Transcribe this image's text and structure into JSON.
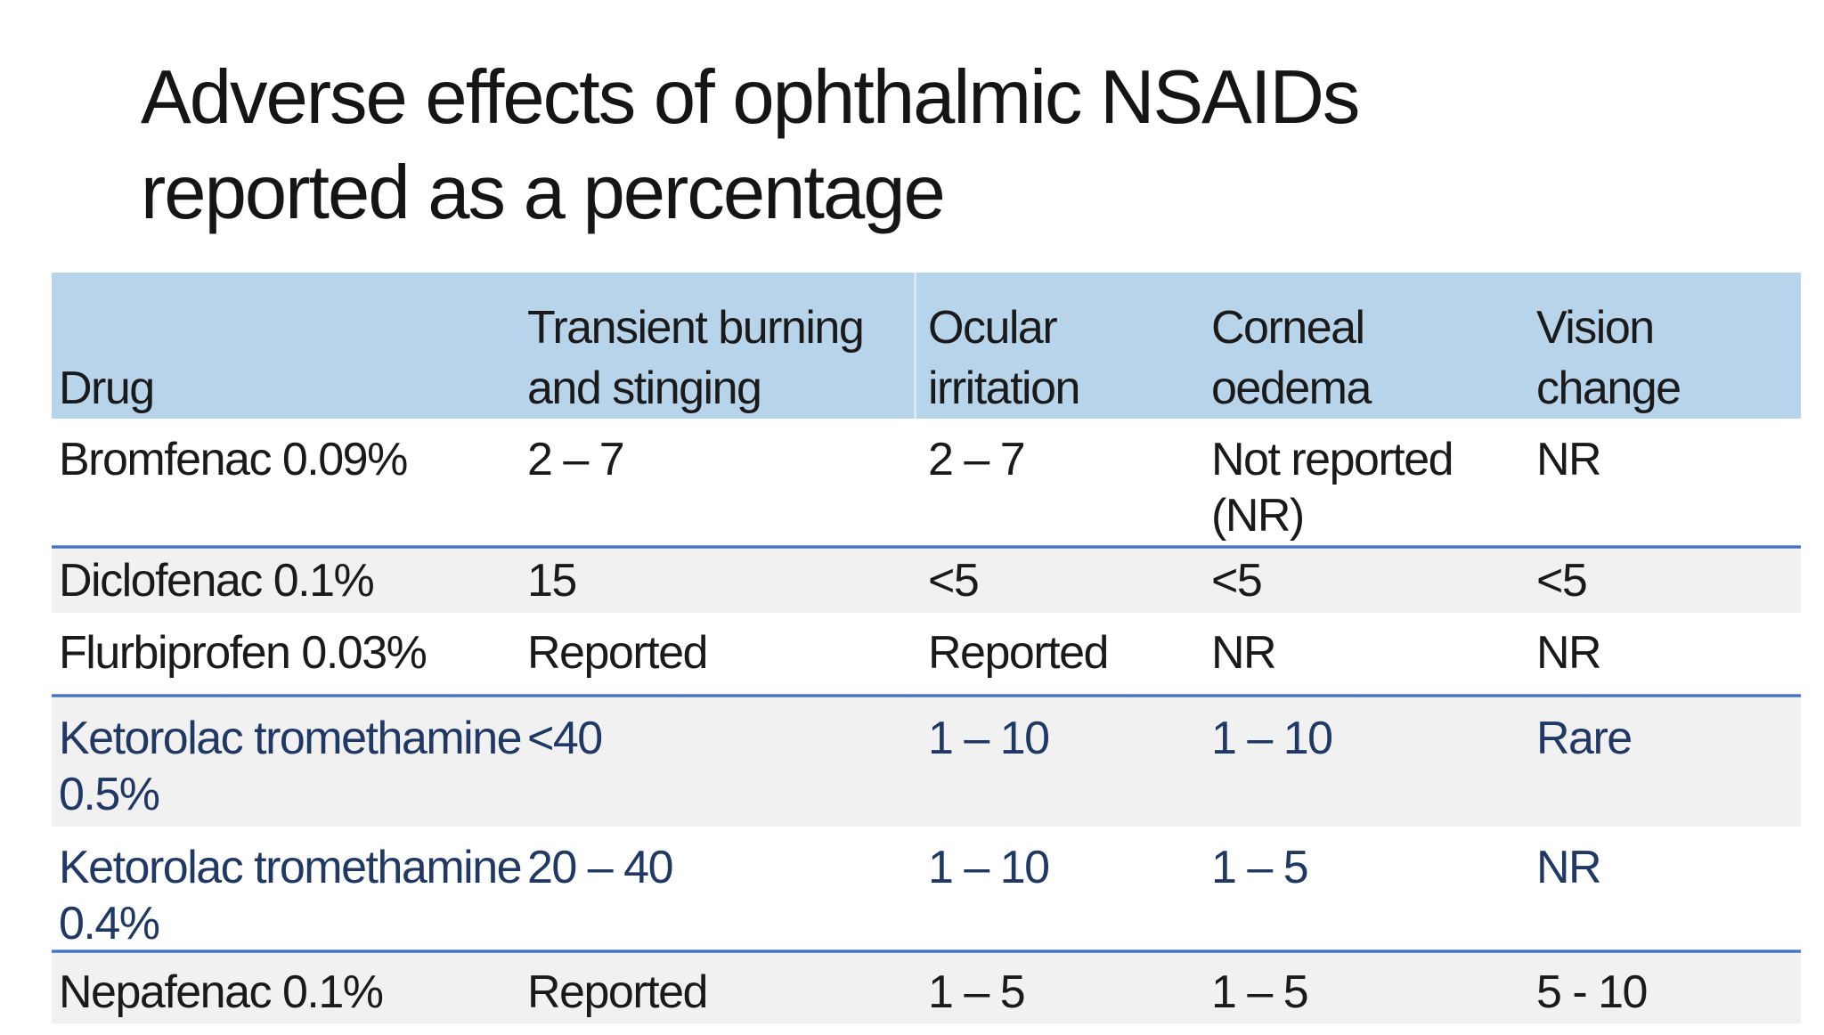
{
  "colors": {
    "header-bg": "#B8D4EB",
    "stripe-bg": "#F1F1F1",
    "divider-blue": "#4472C4",
    "navy-text": "#1F3864",
    "body-text": "#1A1A1A"
  },
  "title": {
    "line1": "Adverse effects of ophthalmic NSAIDs",
    "line2": "reported as a percentage"
  },
  "table": {
    "header": {
      "columns": [
        {
          "l1": "Drug",
          "l2": ""
        },
        {
          "l1": "Transient burning",
          "l2": "and stinging"
        },
        {
          "l1": "Ocular",
          "l2": "irritation"
        },
        {
          "l1": "Corneal",
          "l2": "oedema"
        },
        {
          "l1": "Vision",
          "l2": "change"
        }
      ]
    },
    "rows": [
      {
        "cells": [
          [
            "Bromfenac 0.09%",
            ""
          ],
          [
            "2 – 7",
            ""
          ],
          [
            "2 – 7",
            ""
          ],
          [
            "Not reported",
            "(NR)"
          ],
          [
            "NR",
            ""
          ]
        ]
      },
      {
        "cells": [
          [
            "Diclofenac 0.1%",
            ""
          ],
          [
            "15",
            ""
          ],
          [
            "<5",
            ""
          ],
          [
            "<5",
            ""
          ],
          [
            "<5",
            ""
          ]
        ]
      },
      {
        "cells": [
          [
            "Flurbiprofen 0.03%",
            ""
          ],
          [
            "Reported",
            ""
          ],
          [
            "Reported",
            ""
          ],
          [
            "NR",
            ""
          ],
          [
            "NR",
            ""
          ]
        ]
      },
      {
        "cells": [
          [
            "Ketorolac tromethamine",
            "0.5%"
          ],
          [
            "<40",
            ""
          ],
          [
            "1 – 10",
            ""
          ],
          [
            "1 – 10",
            ""
          ],
          [
            "Rare",
            ""
          ]
        ]
      },
      {
        "cells": [
          [
            "Ketorolac tromethamine",
            "0.4%"
          ],
          [
            "20 – 40",
            ""
          ],
          [
            "1 – 10",
            ""
          ],
          [
            "1 – 5",
            ""
          ],
          [
            "NR",
            ""
          ]
        ]
      },
      {
        "cells": [
          [
            "Nepafenac 0.1%",
            ""
          ],
          [
            "Reported",
            ""
          ],
          [
            "1 – 5",
            ""
          ],
          [
            "1 – 5",
            ""
          ],
          [
            "5 - 10",
            ""
          ]
        ]
      }
    ]
  }
}
